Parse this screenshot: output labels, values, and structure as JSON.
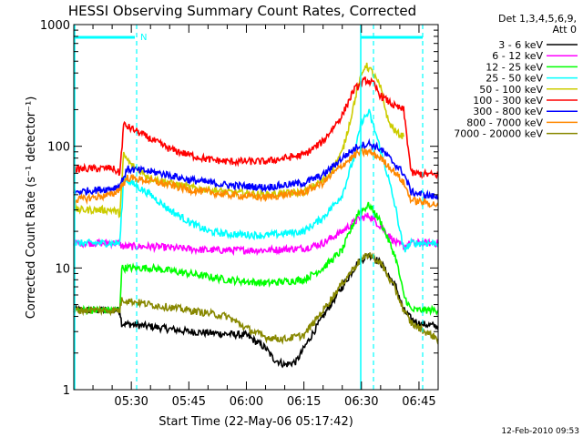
{
  "chart_data": {
    "type": "line",
    "title": "HESSI Observing Summary Count Rates, Corrected",
    "xlabel": "Start Time (22-May-06 05:17:42)",
    "ylabel": "Corrected Count Rate (s⁻¹ detector⁻¹)",
    "y_scale": "log",
    "ylim": [
      1,
      1000
    ],
    "xlim_minutes": [
      0,
      95
    ],
    "x_tick_labels": [
      "05:30",
      "05:45",
      "06:00",
      "06:15",
      "06:30",
      "06:45"
    ],
    "x_tick_minutes": [
      15,
      30,
      45,
      60,
      75,
      90
    ],
    "y_tick_labels": [
      "1",
      "10",
      "100",
      "1000"
    ],
    "y_tick_values": [
      1,
      10,
      100,
      1000
    ],
    "legend_header": [
      "Det 1,3,4,5,6,9,",
      "Att 0"
    ],
    "legend_position": "right",
    "night_label": "N",
    "date_stamp": "12-Feb-2010 09:53",
    "series": [
      {
        "name": "3 - 6 keV",
        "color": "#000000",
        "x": [
          0,
          12,
          12.5,
          20,
          30,
          45,
          50,
          52,
          55,
          58,
          62,
          66,
          70,
          74,
          77,
          80,
          84,
          86,
          88,
          90,
          95
        ],
        "y": [
          4.5,
          4.5,
          3.5,
          3.3,
          3.0,
          2.8,
          2.2,
          1.8,
          1.6,
          1.7,
          2.8,
          4.5,
          7.0,
          11,
          13,
          11,
          7,
          4.5,
          3.8,
          3.5,
          3.3
        ]
      },
      {
        "name": "6 - 12 keV",
        "color": "#ff00ff",
        "x": [
          0,
          12,
          12.5,
          20,
          35,
          50,
          60,
          65,
          70,
          74,
          77,
          80,
          84,
          86,
          88,
          95
        ],
        "y": [
          16,
          16,
          15,
          15,
          14,
          14,
          14.5,
          16,
          20,
          25,
          27,
          22,
          16,
          15,
          16,
          16
        ]
      },
      {
        "name": "12 - 25 keV",
        "color": "#00ff00",
        "x": [
          0,
          12,
          12.5,
          20,
          30,
          40,
          50,
          60,
          65,
          70,
          74,
          77,
          80,
          84,
          86,
          88,
          95
        ],
        "y": [
          4.5,
          4.5,
          10,
          10,
          9,
          8,
          7.5,
          8,
          10,
          14,
          28,
          33,
          24,
          12,
          6,
          4.5,
          4.5
        ]
      },
      {
        "name": "25 - 50 keV",
        "color": "#00ffff",
        "x": [
          0,
          12,
          13,
          15,
          20,
          25,
          30,
          35,
          40,
          50,
          60,
          65,
          70,
          73,
          75,
          77,
          79,
          82,
          84,
          86,
          88,
          95
        ],
        "y": [
          16,
          16,
          55,
          50,
          40,
          30,
          24,
          20,
          19,
          18.5,
          20,
          26,
          40,
          80,
          160,
          190,
          120,
          55,
          30,
          14,
          16,
          16
        ]
      },
      {
        "name": "50 - 100 keV",
        "color": "#cccc00",
        "x": [
          0,
          10,
          12,
          13,
          15,
          20,
          25,
          30,
          40,
          50,
          60,
          66,
          70,
          72,
          74,
          76,
          78,
          80,
          82,
          84,
          86
        ],
        "y": [
          30,
          30,
          28,
          85,
          70,
          55,
          50,
          46,
          42,
          40,
          42,
          55,
          90,
          160,
          300,
          470,
          400,
          300,
          160,
          130,
          120
        ]
      },
      {
        "name": "100 - 300 keV",
        "color": "#ff0000",
        "x": [
          0,
          10,
          12,
          13,
          15,
          20,
          25,
          30,
          35,
          40,
          50,
          60,
          65,
          70,
          73,
          76,
          78,
          80,
          84,
          86,
          88,
          95
        ],
        "y": [
          65,
          66,
          60,
          150,
          140,
          115,
          95,
          85,
          78,
          75,
          75,
          85,
          110,
          180,
          290,
          350,
          330,
          260,
          210,
          200,
          60,
          58
        ]
      },
      {
        "name": "300 - 800 keV",
        "color": "#0000ff",
        "x": [
          0,
          10,
          12,
          14,
          20,
          25,
          30,
          40,
          50,
          60,
          65,
          70,
          74,
          77,
          80,
          84,
          86,
          88,
          95
        ],
        "y": [
          42,
          45,
          48,
          65,
          62,
          58,
          53,
          48,
          46,
          50,
          58,
          80,
          100,
          105,
          95,
          70,
          60,
          42,
          38
        ]
      },
      {
        "name": "800 - 7000 keV",
        "color": "#ff8800",
        "x": [
          0,
          10,
          12,
          14,
          20,
          25,
          30,
          40,
          50,
          60,
          65,
          70,
          74,
          77,
          80,
          84,
          86,
          88,
          95
        ],
        "y": [
          36,
          40,
          45,
          55,
          52,
          48,
          44,
          40,
          38,
          42,
          50,
          70,
          88,
          90,
          80,
          60,
          50,
          36,
          33
        ]
      },
      {
        "name": "7000 - 20000 keV",
        "color": "#888800",
        "x": [
          0,
          12,
          12.5,
          20,
          30,
          40,
          45,
          50,
          55,
          60,
          65,
          70,
          74,
          77,
          80,
          84,
          86,
          88,
          95
        ],
        "y": [
          4.5,
          4.5,
          5.5,
          5.0,
          4.5,
          4.0,
          3.2,
          2.7,
          2.6,
          2.8,
          4.5,
          7.5,
          11,
          13,
          11,
          6.5,
          4.5,
          3.5,
          2.6
        ]
      }
    ]
  }
}
